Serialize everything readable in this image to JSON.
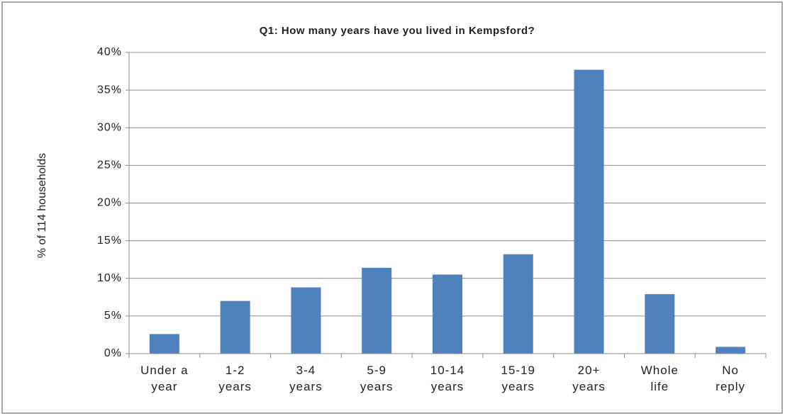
{
  "chart_data": {
    "type": "bar",
    "title": "Q1: How many years have you lived in Kempsford?",
    "y_label": "% of 114 households",
    "categories": [
      "Under a\nyear",
      "1-2\nyears",
      "3-4\nyears",
      "5-9\nyears",
      "10-14\nyears",
      "15-19\nyears",
      "20+\nyears",
      "Whole\nlife",
      "No\nreply"
    ],
    "values": [
      2.6,
      7.0,
      8.8,
      11.4,
      10.5,
      13.2,
      37.7,
      7.9,
      0.9
    ],
    "color": "#4f81bd",
    "ylim": [
      0,
      40
    ],
    "yticks": [
      {
        "value": 0,
        "label": "0%"
      },
      {
        "value": 5,
        "label": "5%"
      },
      {
        "value": 10,
        "label": "10%"
      },
      {
        "value": 15,
        "label": "15%"
      },
      {
        "value": 20,
        "label": "20%"
      },
      {
        "value": 25,
        "label": "25%"
      },
      {
        "value": 30,
        "label": "30%"
      },
      {
        "value": 35,
        "label": "35%"
      },
      {
        "value": 40,
        "label": "40%"
      }
    ],
    "grid": true
  }
}
